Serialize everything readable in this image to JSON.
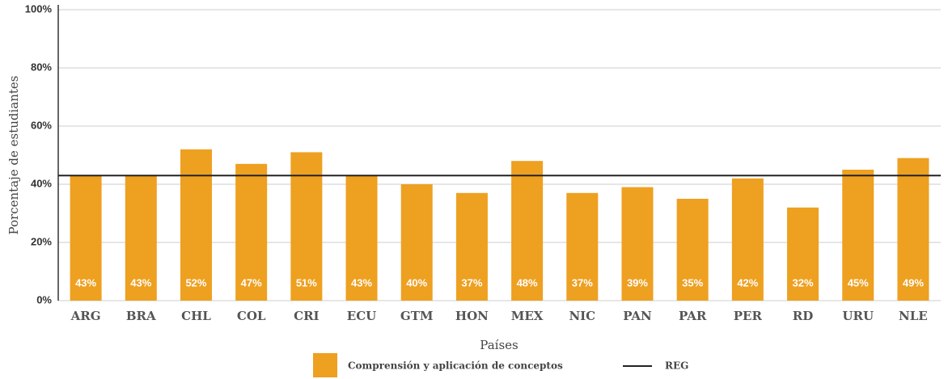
{
  "chart_data": {
    "type": "bar",
    "categories": [
      "ARG",
      "BRA",
      "CHL",
      "COL",
      "CRI",
      "ECU",
      "GTM",
      "HON",
      "MEX",
      "NIC",
      "PAN",
      "PAR",
      "PER",
      "RD",
      "URU",
      "NLE"
    ],
    "series": [
      {
        "name": "Comprensión y aplicación de conceptos",
        "color": "#eea020",
        "values": [
          43,
          43,
          52,
          47,
          51,
          43,
          40,
          37,
          48,
          37,
          39,
          35,
          42,
          32,
          45,
          49
        ],
        "value_labels": [
          "43%",
          "43%",
          "52%",
          "47%",
          "51%",
          "43%",
          "40%",
          "37%",
          "48%",
          "37%",
          "39%",
          "35%",
          "42%",
          "32%",
          "45%",
          "49%"
        ]
      }
    ],
    "reference_line": {
      "name": "REG",
      "value": 43,
      "color": "#222222"
    },
    "xlabel": "Países",
    "ylabel": "Porcentaje de estudiantes",
    "ylim": [
      0,
      100
    ],
    "yticks": [
      {
        "value": 0,
        "label": "0%"
      },
      {
        "value": 20,
        "label": "20%"
      },
      {
        "value": 40,
        "label": "40%"
      },
      {
        "value": 60,
        "label": "60%"
      },
      {
        "value": 80,
        "label": "80%"
      },
      {
        "value": 100,
        "label": "100%"
      }
    ],
    "grid": true
  }
}
